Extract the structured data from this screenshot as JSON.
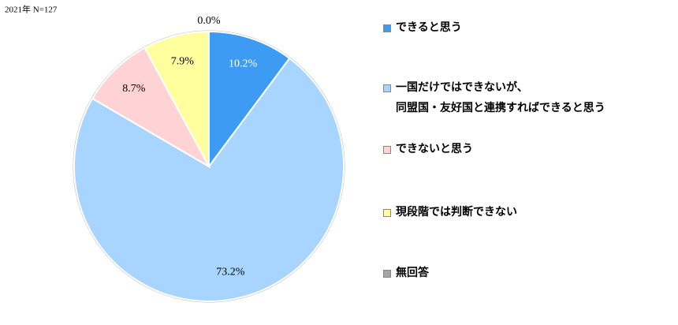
{
  "chart_data": {
    "type": "pie",
    "subtitle": "2021年 N=127",
    "categories": [
      "できると思う",
      "一国だけではできないが、\n同盟国・友好国と連携すればできると思う",
      "できないと思う",
      "現段階では判断できない",
      "無回答"
    ],
    "values": [
      10.2,
      73.2,
      8.7,
      7.9,
      0.0
    ],
    "value_labels": [
      "10.2%",
      "73.2%",
      "8.7%",
      "7.9%",
      "0.0%"
    ],
    "colors": [
      "#3d9bf3",
      "#a8d5ff",
      "#ffd3d3",
      "#ffff9e",
      "#a6a6a6"
    ],
    "legend": "right"
  }
}
